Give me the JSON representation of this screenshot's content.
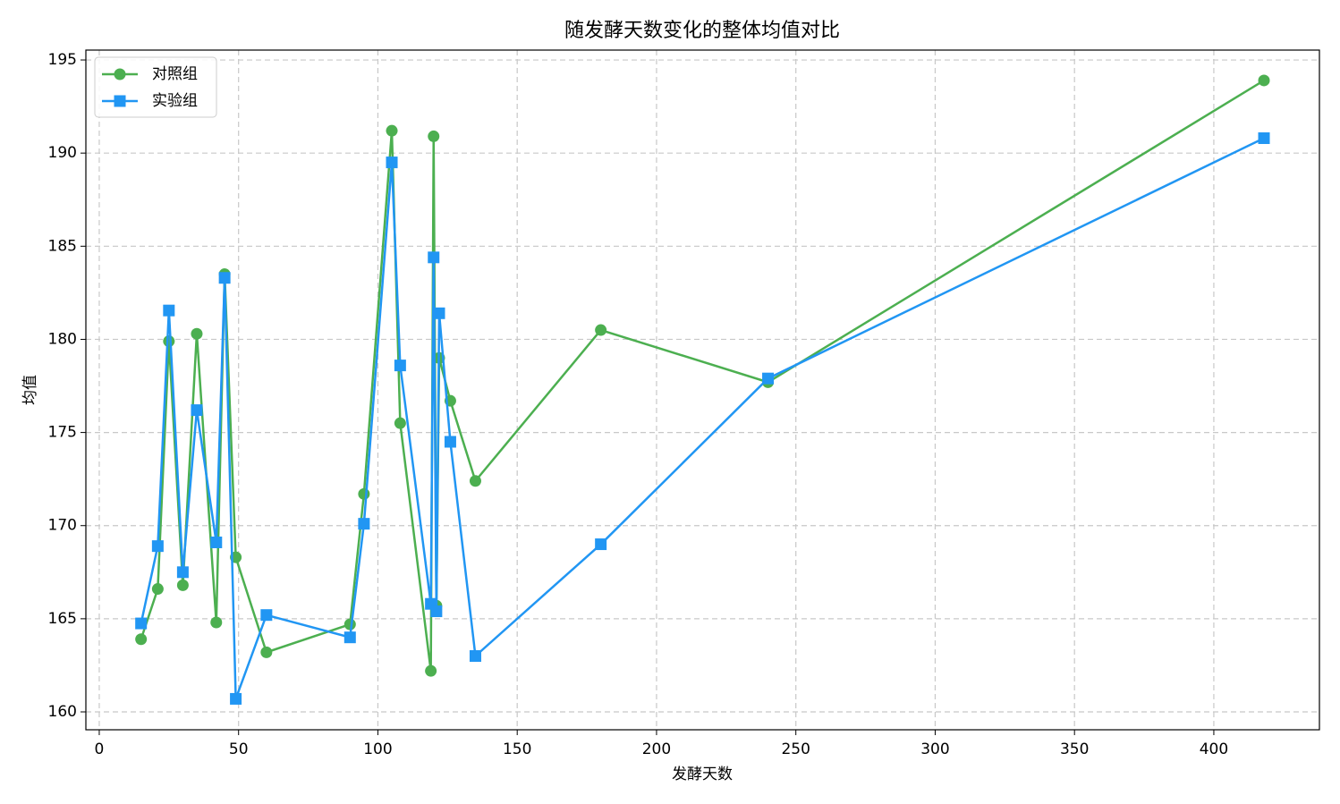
{
  "chart_data": {
    "type": "line",
    "title": "随发酵天数变化的整体均值对比",
    "x_label": "发酵天数",
    "y_label": "均值",
    "x": [
      15,
      21,
      25,
      30,
      35,
      42,
      45,
      49,
      60,
      90,
      95,
      105,
      108,
      119,
      120,
      121,
      122,
      126,
      135,
      180,
      240,
      418
    ],
    "series": [
      {
        "name": "对照组",
        "color": "#4caf50",
        "marker": "circle",
        "values": [
          163.9,
          166.6,
          179.9,
          166.8,
          180.3,
          164.8,
          183.5,
          168.3,
          163.2,
          164.7,
          171.7,
          191.2,
          175.5,
          162.2,
          190.9,
          165.7,
          179.0,
          176.7,
          172.4,
          180.5,
          177.7,
          193.9
        ]
      },
      {
        "name": "实验组",
        "color": "#2196f3",
        "marker": "square",
        "values": [
          164.75,
          168.9,
          181.55,
          167.5,
          176.2,
          169.1,
          183.3,
          160.7,
          165.2,
          164.0,
          170.1,
          189.5,
          178.6,
          165.8,
          184.4,
          165.4,
          181.4,
          174.5,
          163.0,
          169.0,
          177.9,
          190.8
        ]
      }
    ],
    "xlim": [
      -4.8,
      437.9
    ],
    "ylim": [
      159.04,
      195.53
    ],
    "xticks": [
      0,
      50,
      100,
      150,
      200,
      250,
      300,
      350,
      400
    ],
    "yticks": [
      160,
      165,
      170,
      175,
      180,
      185,
      190,
      195
    ],
    "grid": true,
    "legend": "upper left"
  }
}
